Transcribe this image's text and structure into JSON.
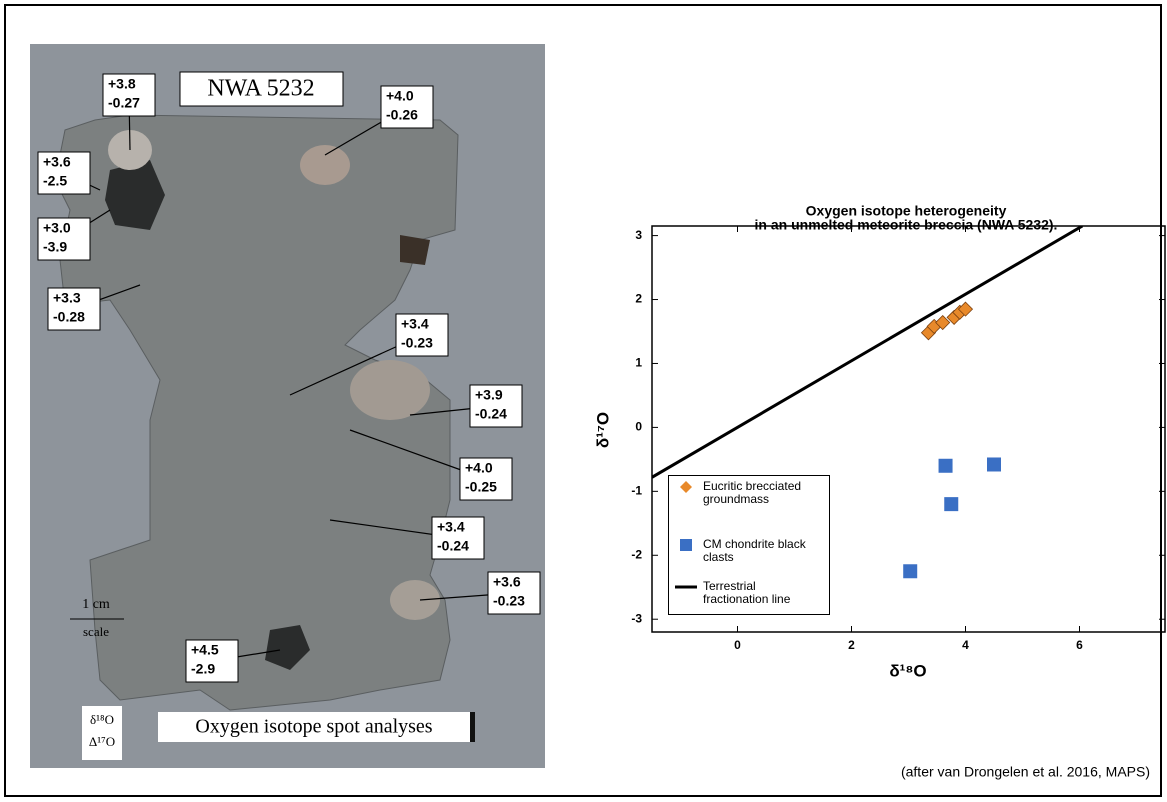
{
  "photo": {
    "title": "NWA 5232",
    "scale_value": "1 cm",
    "scale_label": "scale",
    "caption": "Oxygen isotope spot analyses",
    "key_d18O": "δ¹⁸O",
    "key_D17O": "Δ¹⁷O",
    "spots": [
      {
        "d18O": "+3.8",
        "D17O": "-0.27"
      },
      {
        "d18O": "+4.0",
        "D17O": "-0.26"
      },
      {
        "d18O": "+3.6",
        "D17O": "-2.5"
      },
      {
        "d18O": "+3.0",
        "D17O": "-3.9"
      },
      {
        "d18O": "+3.3",
        "D17O": "-0.28"
      },
      {
        "d18O": "+3.4",
        "D17O": "-0.23"
      },
      {
        "d18O": "+3.9",
        "D17O": "-0.24"
      },
      {
        "d18O": "+4.0",
        "D17O": "-0.25"
      },
      {
        "d18O": "+3.4",
        "D17O": "-0.24"
      },
      {
        "d18O": "+3.6",
        "D17O": "-0.23"
      },
      {
        "d18O": "+4.5",
        "D17O": "-2.9"
      }
    ]
  },
  "chart_data": {
    "type": "scatter",
    "title": "Oxygen isotope heterogeneity",
    "subtitle": "in an unmelted meteorite breccia (NWA 5232).",
    "x_label": "δ¹⁸O",
    "y_label": "δ¹⁷O",
    "xlim": [
      -1.5,
      7.5
    ],
    "ylim": [
      -3.2,
      3.15
    ],
    "xticks": [
      0,
      2,
      4,
      6
    ],
    "yticks": [
      -3,
      -2,
      -1,
      0,
      1,
      2,
      3
    ],
    "legend": "lower left",
    "series": [
      {
        "name": "Eucritic brecciated groundmass",
        "color": "#e8892a",
        "marker": "diamond",
        "x": [
          3.35,
          3.45,
          3.6,
          3.8,
          3.9,
          4.0
        ],
        "values": [
          1.48,
          1.58,
          1.64,
          1.72,
          1.8,
          1.85
        ]
      },
      {
        "name": "CM chondrite black clasts",
        "color": "#3a6fc4",
        "marker": "square",
        "x": [
          3.65,
          4.5,
          3.75,
          3.03
        ],
        "values": [
          -0.6,
          -0.58,
          -1.2,
          -2.25
        ]
      },
      {
        "name": "Terrestrial fractionation line",
        "color": "#000000",
        "marker": "line",
        "x": [
          -1.5,
          6.05
        ],
        "values": [
          -0.78,
          3.15
        ]
      }
    ],
    "note": "(after van Drongelen et al. 2016, MAPS)"
  }
}
